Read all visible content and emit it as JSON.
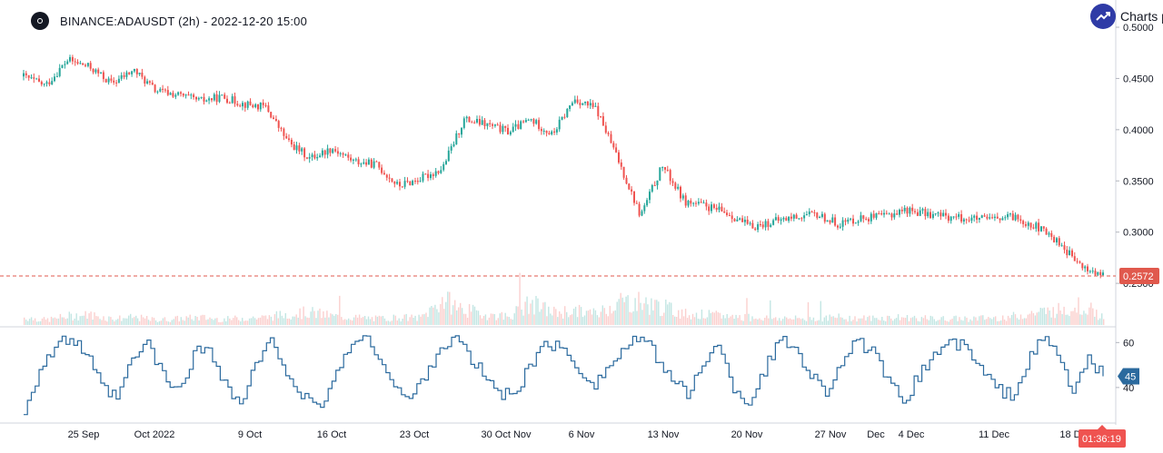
{
  "header": {
    "title": "BINANCE:ADAUSDT (2h) - 2022-12-20 15:00",
    "brand": "Charts p"
  },
  "colors": {
    "up": "#26A69A",
    "down": "#EF5350",
    "rsi_line": "#2B6A9E",
    "last_price_line": "#E0594D",
    "rsi_badge": "#2B6A9E",
    "countdown_badge": "#EF5350",
    "grid": "#E6E6E6",
    "axis_text": "#131722"
  },
  "chart_data": [
    {
      "type": "line",
      "name": "price",
      "subtype": "candlestick",
      "ylim": [
        0.2572,
        0.5
      ],
      "yticks": [
        "0.5000",
        "0.4500",
        "0.4000",
        "0.3500",
        "0.3000",
        "0.2500"
      ],
      "last_price": "0.2572",
      "countdown": "01:36:19",
      "x_tick_labels": [
        "25 Sep",
        "Oct 2022",
        "9 Oct",
        "16 Oct",
        "23 Oct",
        "30 Oct Nov",
        "6 Nov",
        "13 Nov",
        "20 Nov",
        "27 Nov",
        "Dec",
        "4 Dec",
        "11 Dec",
        "18 D"
      ],
      "x": [
        "Sep 19",
        "Sep 21",
        "Sep 23",
        "Sep 25",
        "Sep 27",
        "Sep 29",
        "Oct 1",
        "Oct 3",
        "Oct 5",
        "Oct 7",
        "Oct 9",
        "Oct 11",
        "Oct 13",
        "Oct 14",
        "Oct 16",
        "Oct 18",
        "Oct 20",
        "Oct 22",
        "Oct 24",
        "Oct 26",
        "Oct 27",
        "Oct 29",
        "Oct 31",
        "Nov 2",
        "Nov 4",
        "Nov 6",
        "Nov 8",
        "Nov 9",
        "Nov 10",
        "Nov 12",
        "Nov 14",
        "Nov 16",
        "Nov 18",
        "Nov 20",
        "Nov 22",
        "Nov 24",
        "Nov 26",
        "Nov 28",
        "Nov 30",
        "Dec 2",
        "Dec 4",
        "Dec 6",
        "Dec 8",
        "Dec 10",
        "Dec 12",
        "Dec 14",
        "Dec 16",
        "Dec 17",
        "Dec 18",
        "Dec 20"
      ],
      "y": [
        0.452,
        0.443,
        0.468,
        0.461,
        0.445,
        0.458,
        0.438,
        0.434,
        0.428,
        0.432,
        0.425,
        0.422,
        0.388,
        0.372,
        0.382,
        0.369,
        0.366,
        0.345,
        0.352,
        0.362,
        0.41,
        0.405,
        0.398,
        0.41,
        0.395,
        0.43,
        0.42,
        0.37,
        0.316,
        0.365,
        0.33,
        0.325,
        0.318,
        0.305,
        0.31,
        0.315,
        0.317,
        0.308,
        0.314,
        0.315,
        0.322,
        0.318,
        0.315,
        0.313,
        0.312,
        0.315,
        0.305,
        0.29,
        0.266,
        0.2572
      ]
    },
    {
      "type": "bar",
      "name": "volume",
      "note": "volume histogram, no axis labels shown",
      "values": [
        0.3,
        0.2,
        0.35,
        0.4,
        0.25,
        0.3,
        0.2,
        0.25,
        0.3,
        0.22,
        0.28,
        0.3,
        0.45,
        0.5,
        0.35,
        0.3,
        0.25,
        0.3,
        0.28,
        1.0,
        0.6,
        0.4,
        0.35,
        0.85,
        0.5,
        0.55,
        0.45,
        0.95,
        0.9,
        0.7,
        0.45,
        0.4,
        0.35,
        0.3,
        0.28,
        0.25,
        0.27,
        0.3,
        0.26,
        0.28,
        0.3,
        0.25,
        0.24,
        0.26,
        0.28,
        0.35,
        0.5,
        0.6,
        0.8,
        0.3
      ]
    },
    {
      "type": "line",
      "name": "rsi",
      "ylim": [
        25,
        67
      ],
      "yticks": [
        "60",
        "40"
      ],
      "last_value": "45",
      "values": [
        30,
        48,
        58,
        62,
        55,
        40,
        35,
        52,
        60,
        45,
        38,
        55,
        58,
        42,
        32,
        50,
        60,
        48,
        36,
        30,
        42,
        58,
        62,
        55,
        40,
        34,
        46,
        58,
        62,
        52,
        44,
        36,
        40,
        52,
        60,
        56,
        48,
        42,
        50,
        58,
        62,
        54,
        44,
        36,
        52,
        58,
        40,
        33,
        48,
        61,
        58,
        46,
        38,
        52,
        60,
        56,
        42,
        34,
        45,
        55,
        60,
        58,
        48,
        40,
        36,
        50,
        62,
        55,
        38,
        52,
        45
      ]
    }
  ]
}
